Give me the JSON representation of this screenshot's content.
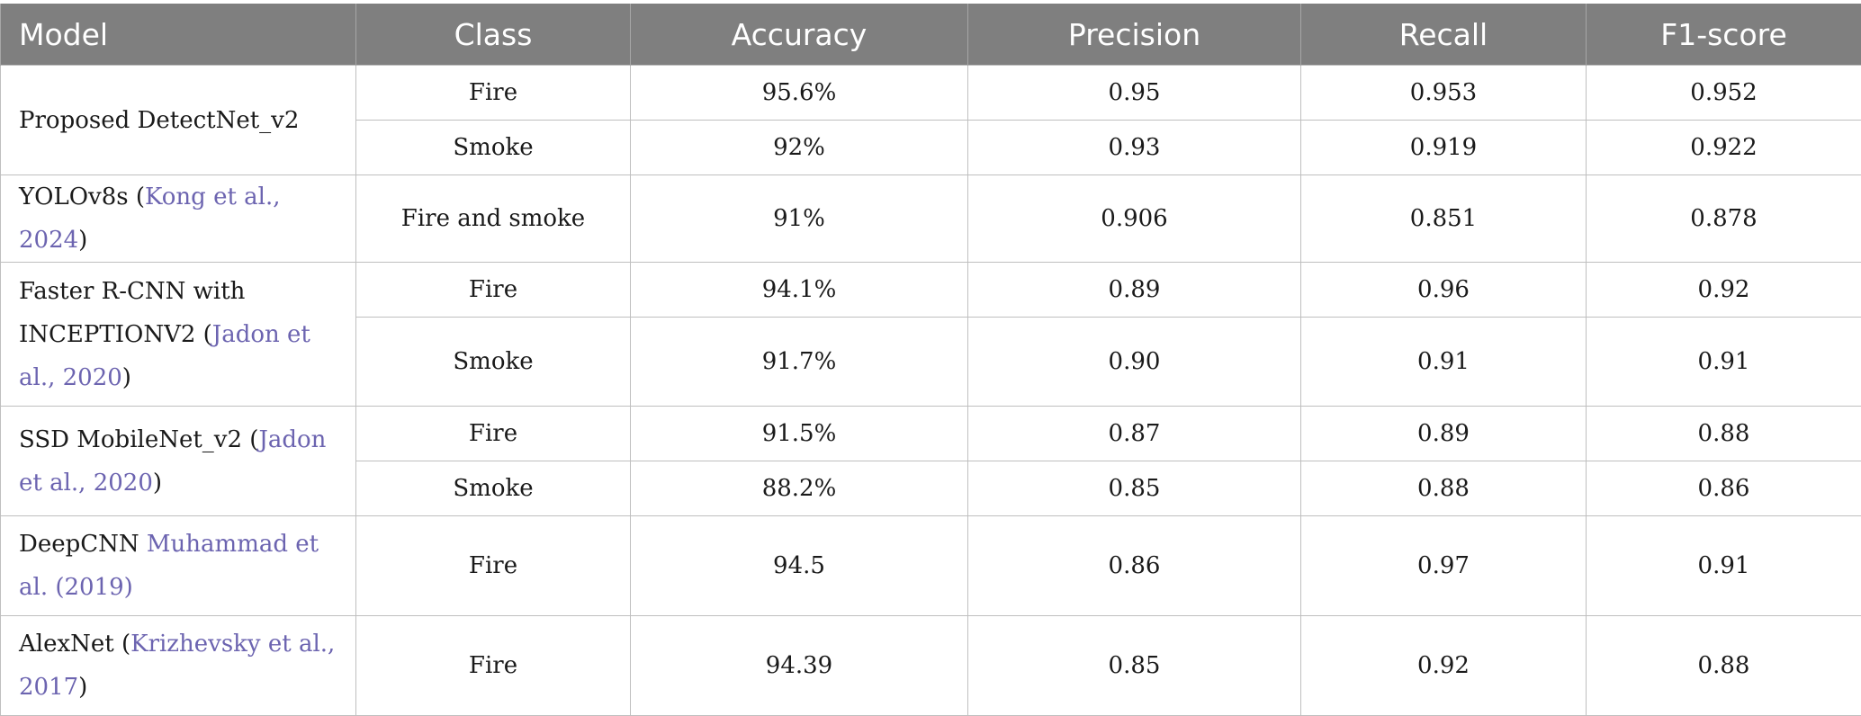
{
  "header": [
    "Model",
    "Class",
    "Accuracy",
    "Precision",
    "Recall",
    "F1-score"
  ],
  "models": [
    {
      "plain": "Proposed DetectNet_v2",
      "cite": "",
      "suffix": ""
    },
    {
      "plain": "YOLOv8s (",
      "cite": "Kong et al., 2024",
      "suffix": ")"
    },
    {
      "plain": "Faster R-CNN with INCEPTIONV2 (",
      "cite": "Jadon et al., 2020",
      "suffix": ")"
    },
    {
      "plain": "SSD MobileNet_v2 (",
      "cite": "Jadon et al., 2020",
      "suffix": ")"
    },
    {
      "plain": "DeepCNN ",
      "cite": "Muhammad et al. (2019)",
      "suffix": ""
    },
    {
      "plain": "AlexNet (",
      "cite": "Krizhevsky et al., 2017",
      "suffix": ")"
    }
  ],
  "rows": [
    {
      "class": "Fire",
      "accuracy": "95.6%",
      "precision": "0.95",
      "recall": "0.953",
      "f1": "0.952"
    },
    {
      "class": "Smoke",
      "accuracy": "92%",
      "precision": "0.93",
      "recall": "0.919",
      "f1": "0.922"
    },
    {
      "class": "Fire and smoke",
      "accuracy": "91%",
      "precision": "0.906",
      "recall": "0.851",
      "f1": "0.878"
    },
    {
      "class": "Fire",
      "accuracy": "94.1%",
      "precision": "0.89",
      "recall": "0.96",
      "f1": "0.92"
    },
    {
      "class": "Smoke",
      "accuracy": "91.7%",
      "precision": "0.90",
      "recall": "0.91",
      "f1": "0.91"
    },
    {
      "class": "Fire",
      "accuracy": "91.5%",
      "precision": "0.87",
      "recall": "0.89",
      "f1": "0.88"
    },
    {
      "class": "Smoke",
      "accuracy": "88.2%",
      "precision": "0.85",
      "recall": "0.88",
      "f1": "0.86"
    },
    {
      "class": "Fire",
      "accuracy": "94.5",
      "precision": "0.86",
      "recall": "0.97",
      "f1": "0.91"
    },
    {
      "class": "Fire",
      "accuracy": "94.39",
      "precision": "0.85",
      "recall": "0.92",
      "f1": "0.88"
    }
  ]
}
